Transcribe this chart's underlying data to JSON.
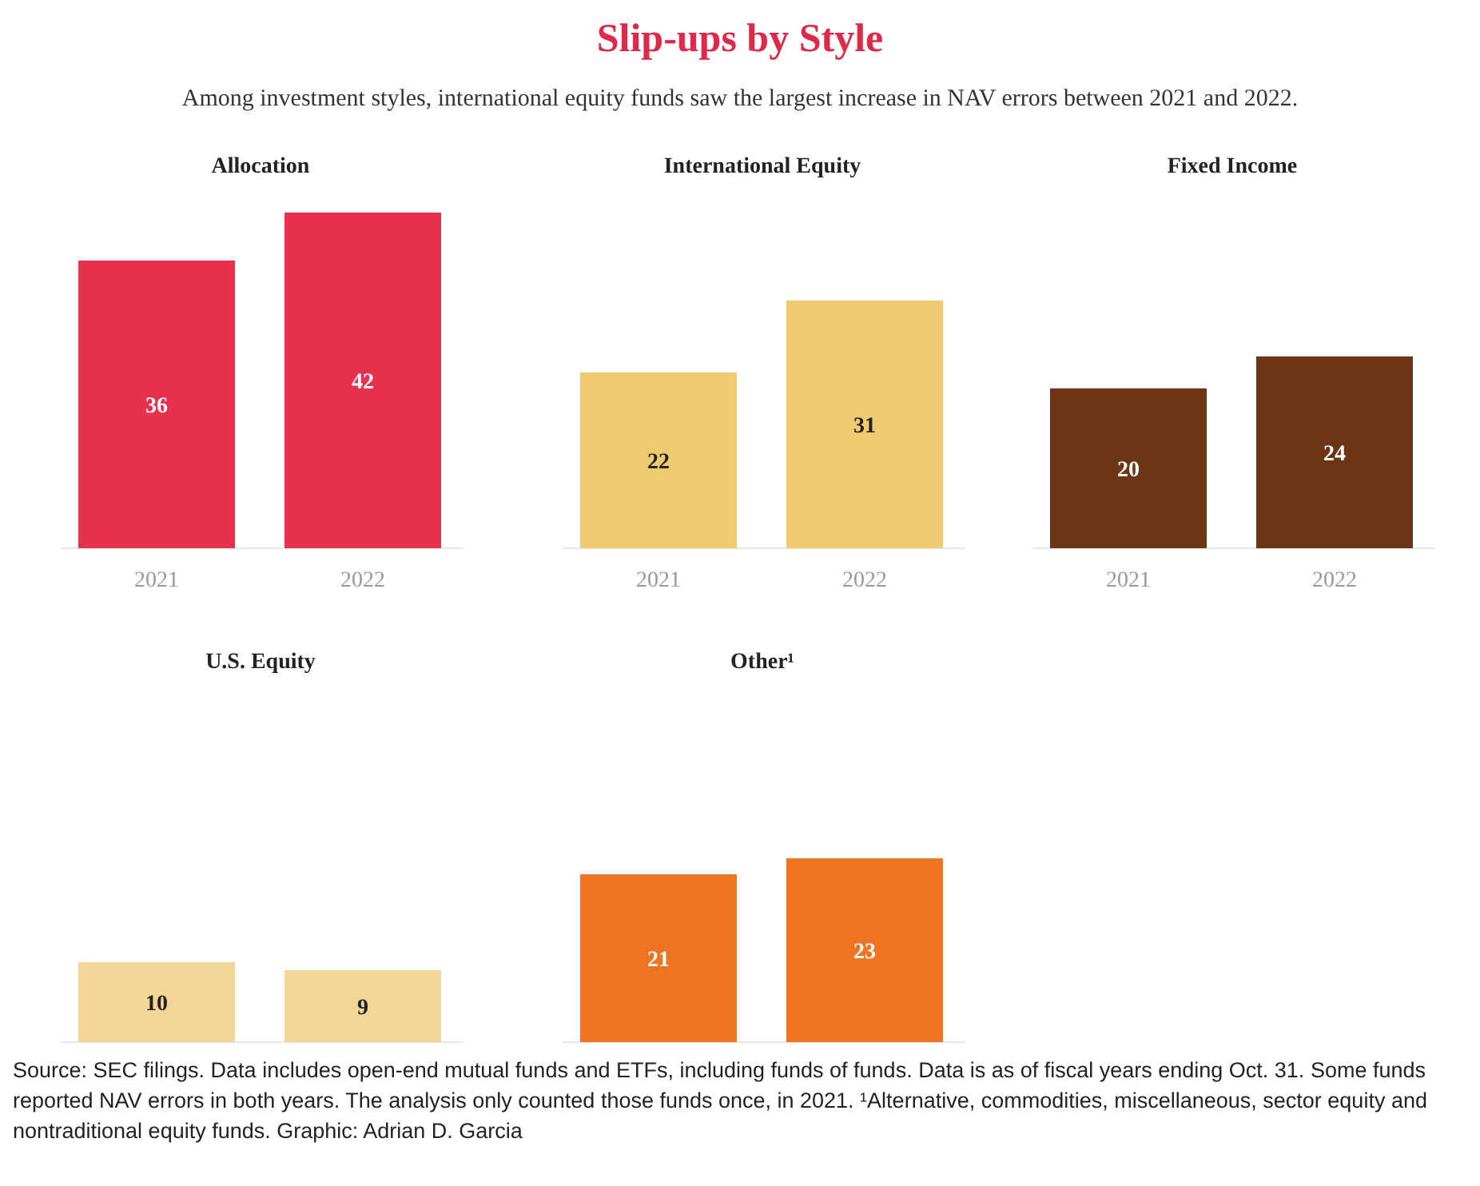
{
  "chart_data": [
    {
      "type": "other",
      "title": "Slip-ups by Style",
      "subtitle": "Among investment styles, international equity funds saw the largest increase in NAV errors between 2021 and 2022.",
      "annotations": [
        "Source: SEC filings. Data includes open-end mutual funds and ETFs, including funds of funds. Data is as of fiscal years ending Oct. 31. Some funds reported NAV errors in both years. The analysis only counted those funds once, in 2021. ¹Alternative, commodities, miscellaneous, sector equity and nontraditional equity funds. Graphic: Adrian D. Garcia"
      ]
    },
    {
      "type": "bar",
      "title": "Allocation",
      "categories": [
        "2021",
        "2022"
      ],
      "values": [
        36,
        42
      ],
      "color": "#e8304f",
      "data_labels": true
    },
    {
      "type": "bar",
      "title": "International Equity",
      "categories": [
        "2021",
        "2022"
      ],
      "values": [
        22,
        31
      ],
      "color": "#eecb6f",
      "data_labels": true
    },
    {
      "type": "bar",
      "title": "Fixed Income",
      "categories": [
        "2021",
        "2022"
      ],
      "values": [
        20,
        24
      ],
      "color": "#6b3516",
      "data_labels": true
    },
    {
      "type": "bar",
      "title": "U.S. Equity",
      "categories": [
        null,
        null
      ],
      "values": [
        10,
        9
      ],
      "color": "#f3d695",
      "data_labels": true
    },
    {
      "type": "bar",
      "title": "Other¹",
      "categories": [
        null,
        null
      ],
      "values": [
        21,
        23
      ],
      "color": "#ee7322",
      "data_labels": true
    }
  ]
}
